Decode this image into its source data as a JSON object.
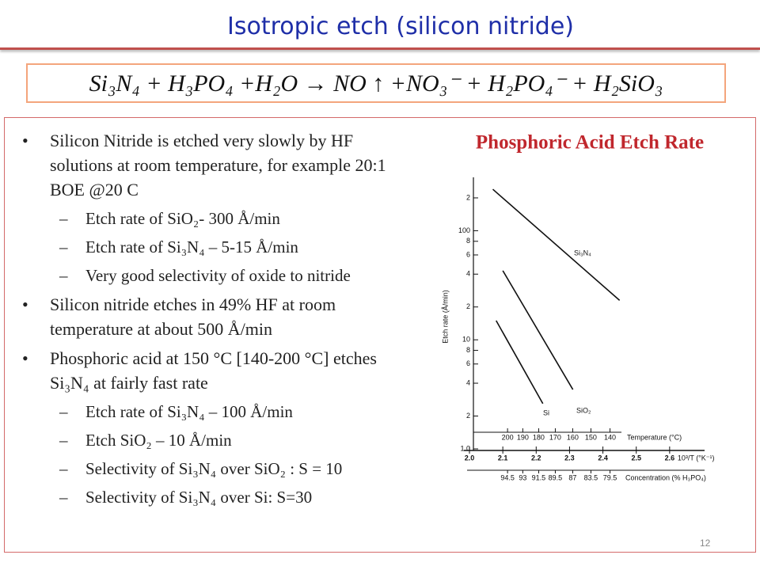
{
  "title": "Isotropic etch (silicon nitride)",
  "equation": "Si₃N₄ + H₃PO₄ +H₂O → NO ↑ +NO₃⁻ + H₂PO₄⁻ + H₂SiO₃",
  "bullets": [
    {
      "text": "Silicon Nitride is etched very slowly by HF solutions at room temperature, for example 20:1 BOE @20 C",
      "sub": [
        "Etch rate of SiO₂- 300  Å/min",
        "Etch rate of Si₃N₄ – 5-15 Å/min",
        "Very good selectivity of oxide to nitride"
      ]
    },
    {
      "text": "Silicon nitride etches in 49% HF at room temperature at about 500 Å/min",
      "sub": []
    },
    {
      "text": "Phosphoric acid at 150 °C [140-200 °C] etches Si₃N₄ at fairly fast rate",
      "sub": [
        "Etch rate of Si₃N₄ – 100 Å/min",
        "Etch SiO₂ – 10 Å/min",
        "Selectivity of Si₃N₄ over SiO₂ : S = 10",
        "Selectivity of Si₃N₄ over Si:  S=30"
      ]
    }
  ],
  "page_number": "12",
  "chart_data": {
    "type": "line",
    "title": "Phosphoric Acid Etch Rate",
    "ylabel": "Etch rate (Å/min)",
    "xlabel": "10³/T (°K⁻¹)",
    "log_y": true,
    "xlim": [
      2.0,
      2.7
    ],
    "ylim": [
      1,
      270
    ],
    "xticks": [
      {
        "value": 2,
        "label": "2.0"
      },
      2.1,
      2.2,
      2.3,
      2.4,
      2.5,
      2.6
    ],
    "yticks": [
      {
        "value": 1,
        "label": "1.0"
      },
      2,
      4,
      6,
      8,
      10,
      {
        "value": 20,
        "label": "2"
      },
      {
        "value": 40,
        "label": "4"
      },
      {
        "value": 60,
        "label": "6"
      },
      {
        "value": 80,
        "label": "8"
      },
      100,
      {
        "value": 200,
        "label": "2"
      }
    ],
    "temperature_label": "Temperature (°C)",
    "temperature_ticks": [
      200,
      190,
      180,
      170,
      160,
      150,
      140
    ],
    "concentration_label": "Concentration (% H₃PO₄)",
    "concentration_ticks": [
      94.5,
      93,
      91.5,
      89.5,
      87,
      83.5,
      79.5
    ],
    "series": [
      {
        "name": "Si₃N₄",
        "color": "#111111",
        "x": [
          2.07,
          2.45
        ],
        "values": [
          240,
          23
        ]
      },
      {
        "name": "SiO₂",
        "color": "#111111",
        "x": [
          2.1,
          2.31
        ],
        "values": [
          43,
          3.5
        ]
      },
      {
        "name": "Si",
        "color": "#111111",
        "x": [
          2.08,
          2.22
        ],
        "values": [
          15,
          2.6
        ]
      }
    ]
  }
}
